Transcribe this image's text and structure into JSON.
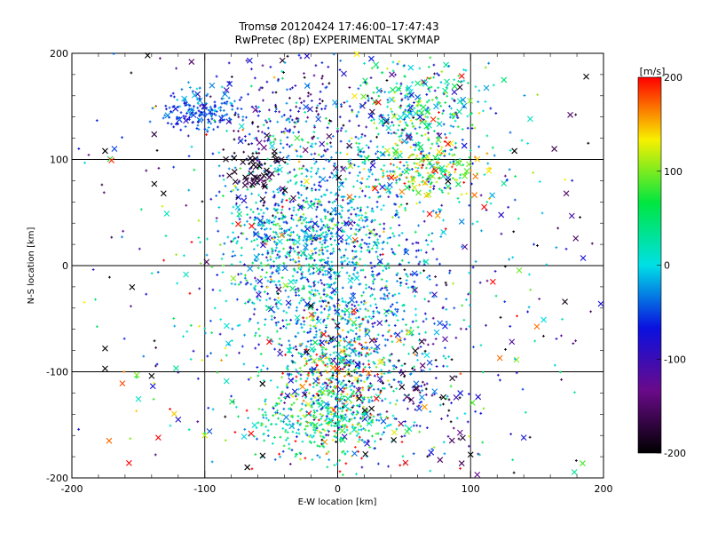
{
  "chart_data": {
    "type": "scatter",
    "title": "Tromsø 20120424 17:46:00–17:47:43",
    "subtitle": "RwPretec (8p) EXPERIMENTAL SKYMAP",
    "xlabel": "E-W location [km]",
    "ylabel": "N-S location [km]",
    "xlim": [
      -200,
      200
    ],
    "ylim": [
      -200,
      200
    ],
    "x_ticks": [
      "-200",
      "-100",
      "0",
      "100",
      "200"
    ],
    "y_ticks": [
      "-200",
      "-100",
      "0",
      "100",
      "200"
    ],
    "grid": true,
    "colorbar": {
      "label": "[m/s]",
      "range": [
        -200,
        200
      ],
      "ticks": [
        "200",
        "100",
        "0",
        "-100",
        "-200"
      ],
      "colormap": [
        "#000000",
        "#6a0a8a",
        "#0a10e0",
        "#00e0e6",
        "#00e640",
        "#f8f000",
        "#ff0000"
      ]
    },
    "markers": {
      "small": "dot/plus",
      "large": "x"
    },
    "clusters": [
      {
        "x": 0,
        "y": 0,
        "sx": 38,
        "sy": 75,
        "count": 1500,
        "v_mean": -20,
        "v_sd": 45,
        "x_frac": 0.04
      },
      {
        "x": 0,
        "y": -105,
        "sx": 18,
        "sy": 35,
        "count": 450,
        "v_mean": 60,
        "v_sd": 110,
        "x_frac": 0.12
      },
      {
        "x": -45,
        "y": 40,
        "sx": 22,
        "sy": 35,
        "count": 300,
        "v_mean": 0,
        "v_sd": 60,
        "x_frac": 0.08
      },
      {
        "x": -105,
        "y": 145,
        "sx": 14,
        "sy": 9,
        "count": 170,
        "v_mean": -50,
        "v_sd": 20,
        "x_frac": 0.12
      },
      {
        "x": 65,
        "y": 145,
        "sx": 25,
        "sy": 22,
        "count": 300,
        "v_mean": 20,
        "v_sd": 70,
        "x_frac": 0.18
      },
      {
        "x": 70,
        "y": 90,
        "sx": 22,
        "sy": 13,
        "count": 220,
        "v_mean": 90,
        "v_sd": 70,
        "x_frac": 0.18
      },
      {
        "x": -10,
        "y": -150,
        "sx": 30,
        "sy": 14,
        "count": 250,
        "v_mean": 30,
        "v_sd": 40,
        "x_frac": 0.06
      },
      {
        "x": 55,
        "y": -115,
        "sx": 28,
        "sy": 30,
        "count": 120,
        "v_mean": -120,
        "v_sd": 90,
        "x_frac": 0.3
      },
      {
        "x": -60,
        "y": 85,
        "sx": 10,
        "sy": 12,
        "count": 60,
        "v_mean": -185,
        "v_sd": 20,
        "x_frac": 0.55
      },
      {
        "x": -30,
        "y": 150,
        "sx": 40,
        "sy": 28,
        "count": 200,
        "v_mean": -110,
        "v_sd": 60,
        "x_frac": 0.15
      },
      {
        "x": 0,
        "y": 0,
        "sx": 110,
        "sy": 120,
        "count": 650,
        "v_mean": -20,
        "v_sd": 130,
        "x_frac": 0.15
      }
    ],
    "notable_points": [
      {
        "x": -143,
        "y": 198,
        "v": -200,
        "marker": "x"
      },
      {
        "x": -110,
        "y": 192,
        "v": -150,
        "marker": "x"
      },
      {
        "x": 187,
        "y": 178,
        "v": -200,
        "marker": "x"
      },
      {
        "x": 175,
        "y": 142,
        "v": -150,
        "marker": "x"
      },
      {
        "x": 163,
        "y": 110,
        "v": -160,
        "marker": "x"
      },
      {
        "x": 133,
        "y": 108,
        "v": -200,
        "marker": "x"
      },
      {
        "x": -138,
        "y": 77,
        "v": -200,
        "marker": "x"
      },
      {
        "x": -131,
        "y": 68,
        "v": -200,
        "marker": "x"
      },
      {
        "x": 172,
        "y": 68,
        "v": -150,
        "marker": "x"
      },
      {
        "x": 171,
        "y": -34,
        "v": -190,
        "marker": "x"
      },
      {
        "x": 155,
        "y": -51,
        "v": 0,
        "marker": "x"
      },
      {
        "x": 198,
        "y": -36,
        "v": -80,
        "marker": "x"
      },
      {
        "x": -172,
        "y": -165,
        "v": 170,
        "marker": "x"
      },
      {
        "x": -157,
        "y": -186,
        "v": 200,
        "marker": "x"
      },
      {
        "x": -140,
        "y": -104,
        "v": -200,
        "marker": "x"
      },
      {
        "x": -135,
        "y": -162,
        "v": 200,
        "marker": "x"
      },
      {
        "x": -162,
        "y": -111,
        "v": 180,
        "marker": "x"
      },
      {
        "x": -175,
        "y": -78,
        "v": -200,
        "marker": "x"
      },
      {
        "x": -175,
        "y": -97,
        "v": -200,
        "marker": "x"
      },
      {
        "x": 100,
        "y": -178,
        "v": -200,
        "marker": "x"
      },
      {
        "x": 77,
        "y": -183,
        "v": -150,
        "marker": "x"
      },
      {
        "x": 105,
        "y": -197,
        "v": -130,
        "marker": "x"
      },
      {
        "x": -68,
        "y": -190,
        "v": -200,
        "marker": "x"
      },
      {
        "x": 140,
        "y": -162,
        "v": -70,
        "marker": "x"
      },
      {
        "x": -120,
        "y": -145,
        "v": -80,
        "marker": "x"
      },
      {
        "x": 122,
        "y": -87,
        "v": 170,
        "marker": "x"
      },
      {
        "x": -175,
        "y": 108,
        "v": -200,
        "marker": "x"
      },
      {
        "x": -168,
        "y": 110,
        "v": -50,
        "marker": "x"
      },
      {
        "x": -100,
        "y": -160,
        "v": 120,
        "marker": "x"
      }
    ]
  }
}
